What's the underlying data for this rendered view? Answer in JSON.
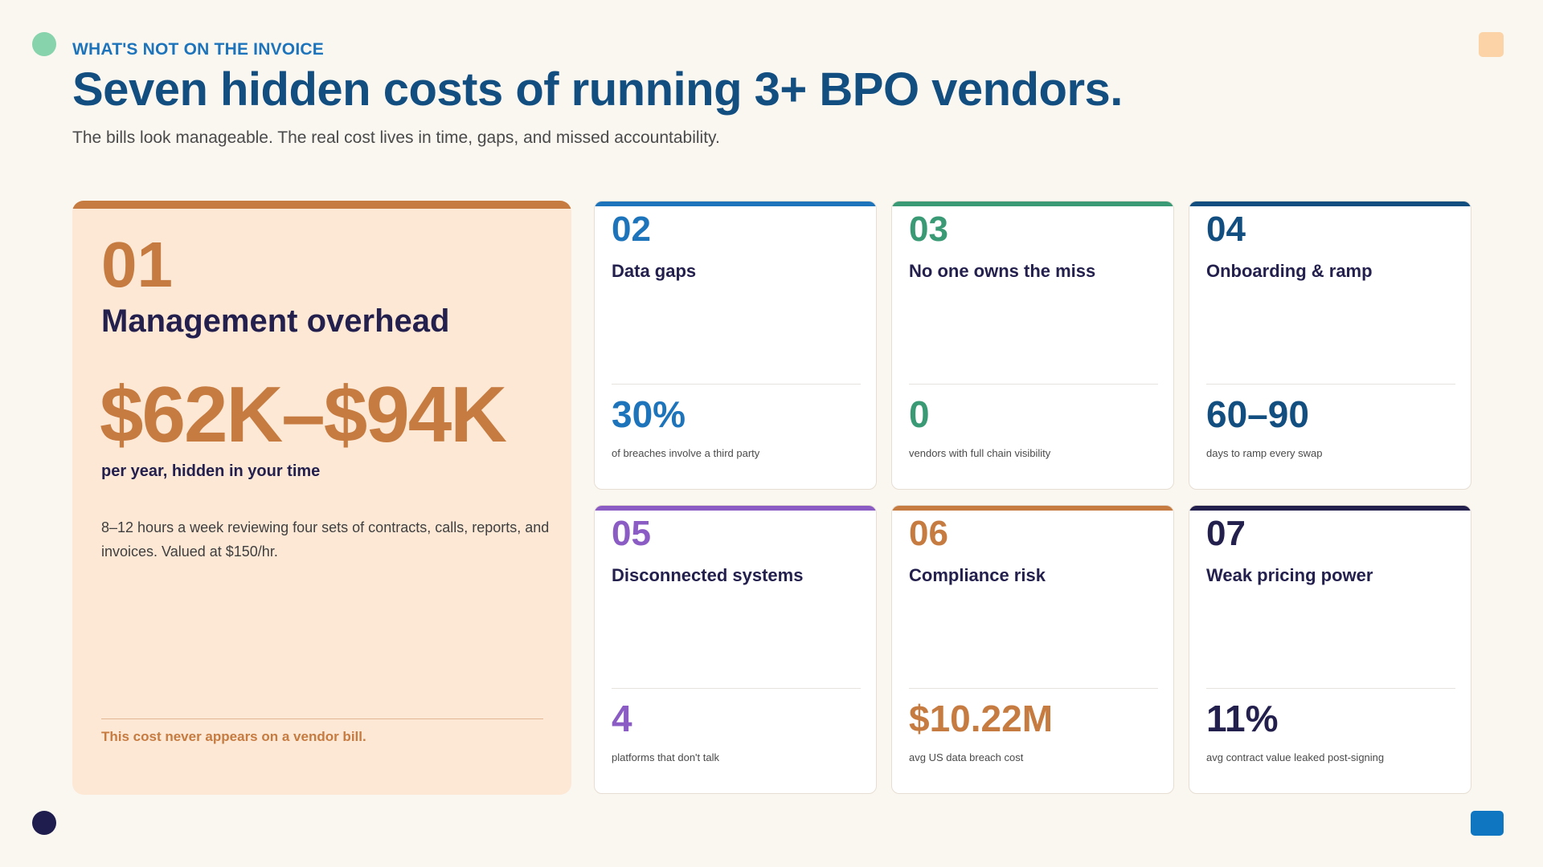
{
  "header": {
    "eyebrow": "WHAT'S NOT ON THE INVOICE",
    "title": "Seven hidden costs of running 3+ BPO vendors.",
    "subtitle": "The bills look manageable. The real cost lives in time, gaps, and missed accountability."
  },
  "hero": {
    "number": "01",
    "title": "Management overhead",
    "amount": "$62K–$94K",
    "amount_sub": "per year, hidden in your time",
    "description": "8–12 hours a week reviewing four sets of contracts, calls, reports, and invoices. Valued at $150/hr.",
    "note": "This cost never appears on a vendor bill.",
    "accent": "#c67b40"
  },
  "cards": [
    {
      "number": "02",
      "title": "Data gaps",
      "stat": "30%",
      "label": "of breaches involve a third party",
      "accent": "#1d74bb"
    },
    {
      "number": "03",
      "title": "No one owns the miss",
      "stat": "0",
      "label": "vendors with full chain visibility",
      "accent": "#3a9a76"
    },
    {
      "number": "04",
      "title": "Onboarding & ramp",
      "stat": "60–90",
      "label": "days to ramp every swap",
      "accent": "#134e80"
    },
    {
      "number": "05",
      "title": "Disconnected systems",
      "stat": "4",
      "label": "platforms that don't talk",
      "accent": "#8a5cc4"
    },
    {
      "number": "06",
      "title": "Compliance risk",
      "stat": "$10.22M",
      "label": "avg US data breach cost",
      "accent": "#c67b40"
    },
    {
      "number": "07",
      "title": "Weak pricing power",
      "stat": "11%",
      "label": "avg contract value leaked post-signing",
      "accent": "#24204e"
    }
  ]
}
